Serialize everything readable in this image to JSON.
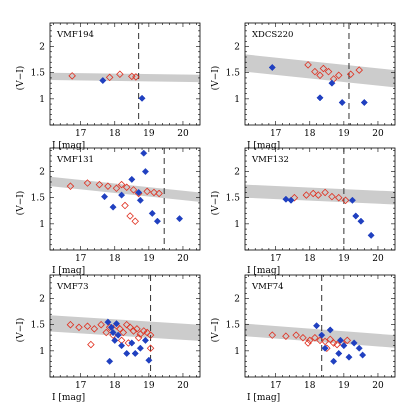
{
  "chart_data": [
    {
      "type": "scatter",
      "title": "VMF194",
      "xlabel": "I [mag]",
      "ylabel": "(V−I)",
      "xlim": [
        16.1,
        20.5
      ],
      "ylim": [
        0.5,
        2.45
      ],
      "xticks": [
        "17",
        "18",
        "19",
        "20"
      ],
      "yticks": [
        "1",
        "1.5",
        "2"
      ],
      "band": {
        "x": [
          16.1,
          20.5
        ],
        "y_upper": [
          1.5,
          1.46
        ],
        "y_lower": [
          1.36,
          1.32
        ],
        "color": "#cccccc"
      },
      "vline": {
        "x": 18.7,
        "style": "dashed"
      },
      "series": [
        {
          "marker": "open-diamond",
          "color": "#e03020",
          "points": [
            [
              16.75,
              1.44
            ],
            [
              17.85,
              1.41
            ],
            [
              18.15,
              1.47
            ],
            [
              18.5,
              1.43
            ],
            [
              18.62,
              1.42
            ]
          ]
        },
        {
          "marker": "filled-diamond",
          "color": "#2040c0",
          "points": [
            [
              17.65,
              1.35
            ],
            [
              18.8,
              1.01
            ]
          ]
        }
      ]
    },
    {
      "type": "scatter",
      "title": "XDCS220",
      "xlabel": "I [mag]",
      "ylabel": "(V−I)",
      "xlim": [
        16.1,
        20.5
      ],
      "ylim": [
        0.5,
        2.45
      ],
      "xticks": [
        "17",
        "18",
        "19",
        "20"
      ],
      "yticks": [
        "1",
        "1.5",
        "2"
      ],
      "band": {
        "x": [
          16.1,
          20.5
        ],
        "y_upper": [
          1.85,
          1.55
        ],
        "y_lower": [
          1.52,
          1.22
        ],
        "color": "#cccccc"
      },
      "vline": {
        "x": 19.15,
        "style": "dashed"
      },
      "series": [
        {
          "marker": "open-diamond",
          "color": "#e03020",
          "points": [
            [
              17.95,
              1.65
            ],
            [
              18.15,
              1.52
            ],
            [
              18.3,
              1.45
            ],
            [
              18.4,
              1.58
            ],
            [
              18.55,
              1.52
            ],
            [
              18.7,
              1.38
            ],
            [
              18.85,
              1.45
            ],
            [
              19.2,
              1.47
            ],
            [
              19.45,
              1.55
            ]
          ]
        },
        {
          "marker": "filled-diamond",
          "color": "#2040c0",
          "points": [
            [
              16.9,
              1.6
            ],
            [
              18.3,
              1.02
            ],
            [
              18.65,
              1.3
            ],
            [
              18.95,
              0.93
            ],
            [
              19.6,
              0.93
            ]
          ]
        }
      ]
    },
    {
      "type": "scatter",
      "title": "VMF131",
      "xlabel": "I [mag]",
      "ylabel": "(V−I)",
      "xlim": [
        16.1,
        20.5
      ],
      "ylim": [
        0.5,
        2.45
      ],
      "xticks": [
        "17",
        "18",
        "19",
        "20"
      ],
      "yticks": [
        "1",
        "1.5",
        "2"
      ],
      "band": {
        "x": [
          16.1,
          20.5
        ],
        "y_upper": [
          1.9,
          1.6
        ],
        "y_lower": [
          1.72,
          1.42
        ],
        "color": "#cccccc"
      },
      "vline": {
        "x": 19.45,
        "style": "dashed"
      },
      "series": [
        {
          "marker": "open-diamond",
          "color": "#e03020",
          "points": [
            [
              16.7,
              1.72
            ],
            [
              17.2,
              1.78
            ],
            [
              17.55,
              1.75
            ],
            [
              17.8,
              1.72
            ],
            [
              18.05,
              1.68
            ],
            [
              18.2,
              1.75
            ],
            [
              18.35,
              1.7
            ],
            [
              18.55,
              1.65
            ],
            [
              18.7,
              1.58
            ],
            [
              18.95,
              1.62
            ],
            [
              19.15,
              1.6
            ],
            [
              19.3,
              1.58
            ],
            [
              18.3,
              1.35
            ],
            [
              18.45,
              1.15
            ],
            [
              18.6,
              1.05
            ]
          ]
        },
        {
          "marker": "filled-diamond",
          "color": "#2040c0",
          "points": [
            [
              17.7,
              1.52
            ],
            [
              17.95,
              1.32
            ],
            [
              18.2,
              1.55
            ],
            [
              18.5,
              1.85
            ],
            [
              18.7,
              1.6
            ],
            [
              18.9,
              2.0
            ],
            [
              18.85,
              2.35
            ],
            [
              18.75,
              1.45
            ],
            [
              19.1,
              1.2
            ],
            [
              19.25,
              1.05
            ],
            [
              19.9,
              1.1
            ]
          ]
        }
      ]
    },
    {
      "type": "scatter",
      "title": "VMF132",
      "xlabel": "I [mag]",
      "ylabel": "(V−I)",
      "xlim": [
        16.1,
        20.5
      ],
      "ylim": [
        0.5,
        2.45
      ],
      "xticks": [
        "17",
        "18",
        "19",
        "20"
      ],
      "yticks": [
        "1",
        "1.5",
        "2"
      ],
      "band": {
        "x": [
          16.1,
          20.5
        ],
        "y_upper": [
          1.75,
          1.62
        ],
        "y_lower": [
          1.5,
          1.37
        ],
        "color": "#cccccc"
      },
      "vline": {
        "x": 19.0,
        "style": "dashed"
      },
      "series": [
        {
          "marker": "open-diamond",
          "color": "#e03020",
          "points": [
            [
              17.55,
              1.5
            ],
            [
              17.9,
              1.55
            ],
            [
              18.1,
              1.58
            ],
            [
              18.25,
              1.55
            ],
            [
              18.45,
              1.6
            ],
            [
              18.65,
              1.52
            ],
            [
              18.85,
              1.5
            ],
            [
              19.05,
              1.45
            ]
          ]
        },
        {
          "marker": "filled-diamond",
          "color": "#2040c0",
          "points": [
            [
              17.3,
              1.47
            ],
            [
              17.45,
              1.45
            ],
            [
              19.25,
              1.45
            ],
            [
              19.35,
              1.15
            ],
            [
              19.5,
              1.05
            ],
            [
              19.8,
              0.78
            ]
          ]
        }
      ]
    },
    {
      "type": "scatter",
      "title": "VMF73",
      "xlabel": "I [mag]",
      "ylabel": "(V−I)",
      "xlim": [
        16.1,
        20.5
      ],
      "ylim": [
        0.5,
        2.45
      ],
      "xticks": [
        "17",
        "18",
        "19",
        "20"
      ],
      "yticks": [
        "1",
        "1.5",
        "2"
      ],
      "band": {
        "x": [
          16.1,
          20.5
        ],
        "y_upper": [
          1.68,
          1.5
        ],
        "y_lower": [
          1.37,
          1.19
        ],
        "color": "#cccccc"
      },
      "vline": {
        "x": 19.05,
        "style": "dashed"
      },
      "series": [
        {
          "marker": "open-diamond",
          "color": "#e03020",
          "points": [
            [
              16.7,
              1.5
            ],
            [
              16.95,
              1.45
            ],
            [
              17.2,
              1.47
            ],
            [
              17.4,
              1.42
            ],
            [
              17.6,
              1.5
            ],
            [
              17.75,
              1.35
            ],
            [
              17.85,
              1.45
            ],
            [
              17.95,
              1.3
            ],
            [
              18.05,
              1.48
            ],
            [
              18.15,
              1.42
            ],
            [
              18.25,
              1.35
            ],
            [
              18.35,
              1.5
            ],
            [
              18.45,
              1.45
            ],
            [
              18.55,
              1.38
            ],
            [
              18.65,
              1.42
            ],
            [
              18.75,
              1.32
            ],
            [
              18.85,
              1.38
            ],
            [
              18.95,
              1.35
            ],
            [
              19.05,
              1.3
            ],
            [
              18.2,
              1.2
            ],
            [
              18.4,
              1.15
            ],
            [
              19.05,
              1.05
            ],
            [
              17.3,
              1.12
            ],
            [
              18.7,
              1.25
            ]
          ]
        },
        {
          "marker": "filled-diamond",
          "color": "#2040c0",
          "points": [
            [
              17.8,
              1.55
            ],
            [
              17.9,
              1.45
            ],
            [
              17.95,
              1.35
            ],
            [
              18.0,
              1.2
            ],
            [
              18.05,
              1.52
            ],
            [
              18.1,
              1.3
            ],
            [
              18.2,
              1.1
            ],
            [
              18.35,
              0.95
            ],
            [
              18.5,
              1.15
            ],
            [
              18.6,
              0.95
            ],
            [
              18.75,
              1.05
            ],
            [
              18.9,
              1.2
            ],
            [
              19.0,
              0.82
            ],
            [
              17.85,
              0.8
            ]
          ]
        }
      ]
    },
    {
      "type": "scatter",
      "title": "VMF74",
      "xlabel": "I [mag]",
      "ylabel": "(V−I)",
      "xlim": [
        16.1,
        20.5
      ],
      "ylim": [
        0.5,
        2.45
      ],
      "xticks": [
        "17",
        "18",
        "19",
        "20"
      ],
      "yticks": [
        "1",
        "1.5",
        "2"
      ],
      "band": {
        "x": [
          16.1,
          20.5
        ],
        "y_upper": [
          1.52,
          1.3
        ],
        "y_lower": [
          1.28,
          1.06
        ],
        "color": "#cccccc"
      },
      "vline": {
        "x": 18.35,
        "style": "dashed"
      },
      "series": [
        {
          "marker": "open-diamond",
          "color": "#e03020",
          "points": [
            [
              16.9,
              1.3
            ],
            [
              17.3,
              1.28
            ],
            [
              17.6,
              1.3
            ],
            [
              17.8,
              1.25
            ],
            [
              18.0,
              1.2
            ],
            [
              18.15,
              1.25
            ],
            [
              18.3,
              1.2
            ],
            [
              18.45,
              1.18
            ],
            [
              18.6,
              1.22
            ],
            [
              18.7,
              1.15
            ],
            [
              18.8,
              1.12
            ],
            [
              18.95,
              1.15
            ],
            [
              19.1,
              1.2
            ],
            [
              18.5,
              1.05
            ],
            [
              17.95,
              1.15
            ]
          ]
        },
        {
          "marker": "filled-diamond",
          "color": "#2040c0",
          "points": [
            [
              18.2,
              1.48
            ],
            [
              18.35,
              1.3
            ],
            [
              18.45,
              1.05
            ],
            [
              18.6,
              1.4
            ],
            [
              18.7,
              0.8
            ],
            [
              18.85,
              0.95
            ],
            [
              18.9,
              1.2
            ],
            [
              19.0,
              1.1
            ],
            [
              19.15,
              0.88
            ],
            [
              19.3,
              1.15
            ],
            [
              19.45,
              1.05
            ],
            [
              19.55,
              0.92
            ]
          ]
        }
      ]
    }
  ]
}
